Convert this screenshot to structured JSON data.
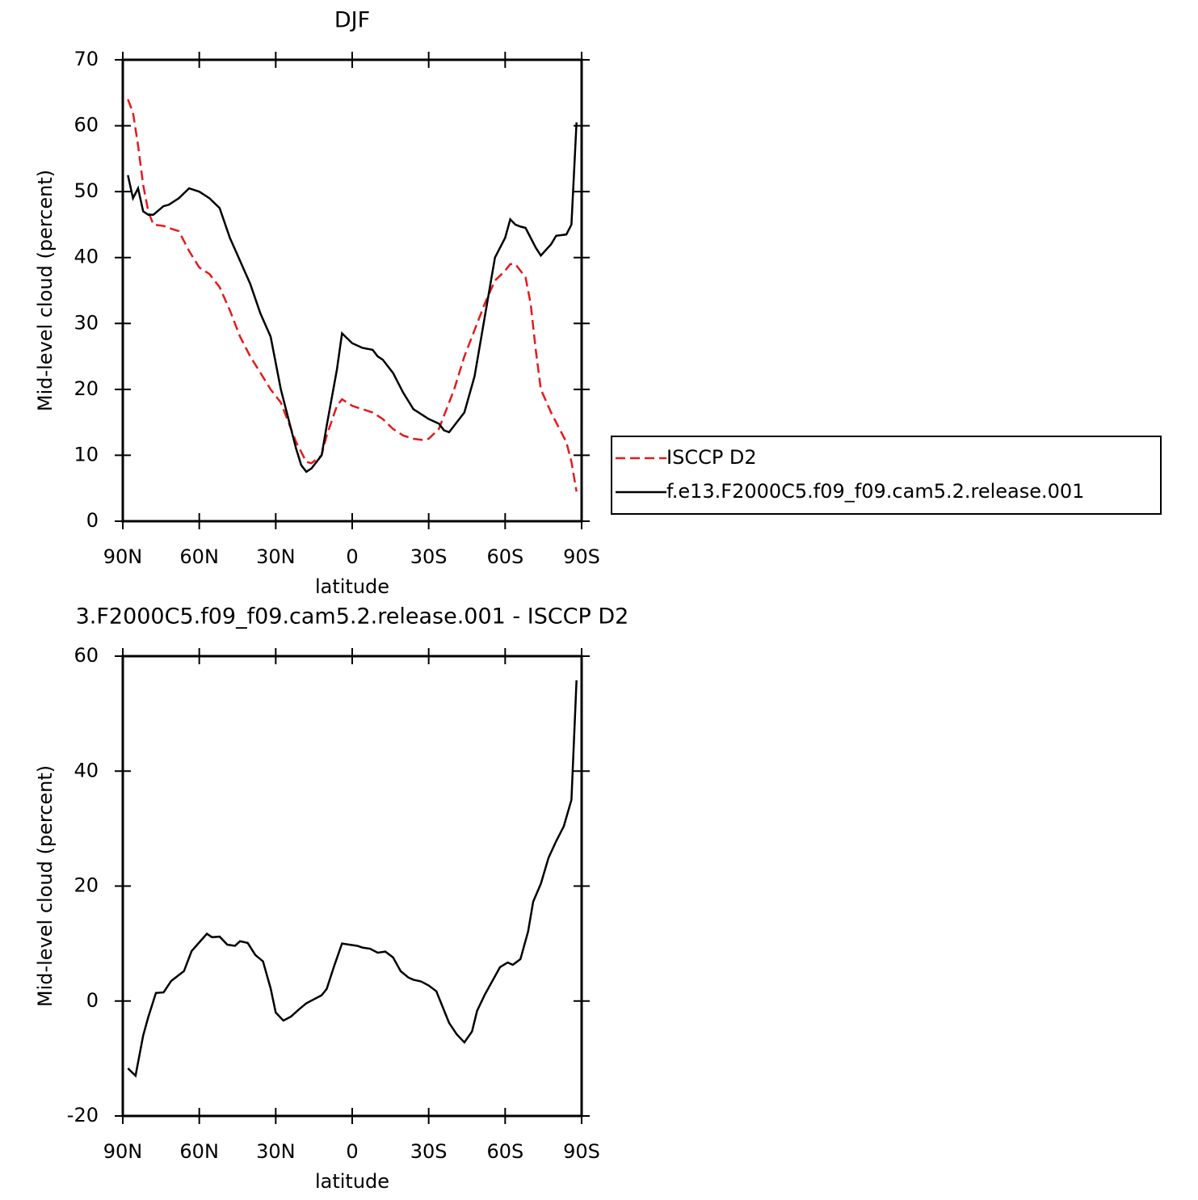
{
  "chart_data": [
    {
      "type": "line",
      "title": "DJF",
      "xlabel": "latitude",
      "ylabel": "Mid-level cloud (percent)",
      "x": [
        88,
        86,
        84,
        82,
        80,
        78,
        74,
        72,
        68,
        64,
        60,
        56,
        52,
        48,
        44,
        40,
        36,
        32,
        28,
        24,
        22,
        20,
        18,
        16,
        12,
        10,
        6,
        4,
        0,
        -4,
        -8,
        -10,
        -12,
        -16,
        -20,
        -24,
        -28,
        -30,
        -34,
        -36,
        -38,
        -40,
        -44,
        -48,
        -52,
        -56,
        -60,
        -62,
        -64,
        -66,
        -68,
        -70,
        -72,
        -74,
        -78,
        -80,
        -84,
        -86,
        -88
      ],
      "series": [
        {
          "name": "ISCCP D2",
          "color": "#e41a1c",
          "dash": "dashed",
          "values": [
            64,
            62,
            57,
            51,
            47,
            45,
            44.8,
            44.5,
            44,
            41,
            38.5,
            37.5,
            35.5,
            32,
            28,
            25,
            22.5,
            20,
            18,
            14,
            12,
            10.5,
            9,
            8.8,
            10,
            13,
            17.5,
            18.5,
            17.5,
            17,
            16.5,
            16,
            15.5,
            14,
            13,
            12.5,
            12.3,
            12.5,
            14,
            16,
            18,
            20,
            25,
            29,
            33,
            36.5,
            38,
            39,
            39,
            38,
            37,
            33,
            26,
            20,
            16.5,
            15,
            12,
            9,
            4.5
          ]
        },
        {
          "name": "f.e13.F2000C5.f09_f09.cam5.2.release.001",
          "color": "#000000",
          "dash": "solid",
          "values": [
            52.5,
            49,
            50.5,
            47,
            46.5,
            46.5,
            47.8,
            48,
            49,
            50.5,
            50,
            49,
            47.5,
            43,
            39.5,
            36,
            31.5,
            28,
            20,
            14,
            11,
            8.5,
            7.5,
            8,
            10,
            14.5,
            23,
            28.5,
            27,
            26.3,
            26,
            25,
            24.5,
            22.5,
            19.5,
            17,
            16,
            15.5,
            14.8,
            13.8,
            13.5,
            14.5,
            16.5,
            22,
            31,
            40,
            43,
            45.8,
            45,
            44.7,
            44.5,
            43,
            41.5,
            40.3,
            42,
            43.3,
            43.5,
            45,
            60.5
          ]
        }
      ],
      "xlim": [
        90,
        -90
      ],
      "xticks": [
        {
          "value": 90,
          "label": "90N"
        },
        {
          "value": 60,
          "label": "60N"
        },
        {
          "value": 30,
          "label": "30N"
        },
        0,
        {
          "value": -30,
          "label": "30S"
        },
        {
          "value": -60,
          "label": "60S"
        },
        {
          "value": -90,
          "label": "90S"
        }
      ],
      "ylim": [
        0,
        70
      ],
      "yticks": [
        0,
        10,
        20,
        30,
        40,
        50,
        60,
        70
      ],
      "legend": "right"
    },
    {
      "type": "line",
      "title": "3.F2000C5.f09_f09.cam5.2.release.001 - ISCCP D2",
      "xlabel": "latitude",
      "ylabel": "Mid-level cloud (percent)",
      "x": [
        88,
        85,
        82,
        80,
        77,
        74,
        71,
        66,
        63,
        57,
        55,
        52,
        49,
        46,
        44,
        41,
        38,
        35,
        32,
        30,
        27,
        24,
        21,
        18,
        12,
        10,
        7,
        4,
        -2,
        -4,
        -7,
        -10,
        -13,
        -16,
        -19,
        -22,
        -24,
        -27,
        -30,
        -33,
        -38,
        -41,
        -44,
        -47,
        -49,
        -52,
        -58,
        -61,
        -63,
        -66,
        -69,
        -71,
        -74,
        -77,
        -80,
        -83,
        -86,
        -88
      ],
      "color": "#000000",
      "values": [
        -11.7,
        -13,
        -6,
        -2.8,
        1.4,
        1.5,
        3.5,
        5.2,
        8.7,
        11.7,
        11.1,
        11.2,
        9.8,
        9.6,
        10.4,
        10.1,
        8,
        6.9,
        2.2,
        -2,
        -3.4,
        -2.7,
        -1.5,
        -0.4,
        1,
        2.1,
        6.2,
        10,
        9.6,
        9.3,
        9.1,
        8.4,
        8.6,
        7.6,
        5.2,
        4.1,
        3.7,
        3.4,
        2.7,
        1.7,
        -3.8,
        -5.8,
        -7.2,
        -5.3,
        -1.7,
        1.1,
        5.9,
        6.7,
        6.3,
        7.3,
        12.1,
        17.3,
        20.4,
        24.9,
        27.8,
        30.4,
        35,
        55.8
      ],
      "xlim": [
        90,
        -90
      ],
      "xticks": [
        {
          "value": 90,
          "label": "90N"
        },
        {
          "value": 60,
          "label": "60N"
        },
        {
          "value": 30,
          "label": "30N"
        },
        0,
        {
          "value": -30,
          "label": "30S"
        },
        {
          "value": -60,
          "label": "60S"
        },
        {
          "value": -90,
          "label": "90S"
        }
      ],
      "ylim": [
        -20,
        60
      ],
      "yticks": [
        -20,
        0,
        20,
        40,
        60
      ]
    }
  ]
}
